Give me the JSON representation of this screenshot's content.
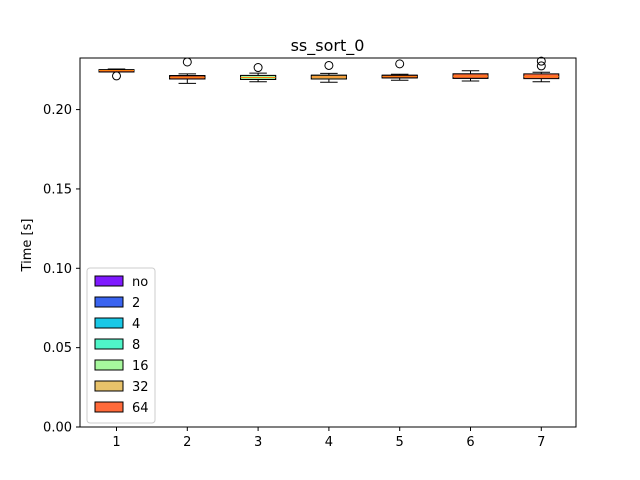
{
  "chart_data": {
    "type": "box",
    "title": "ss_sort_0",
    "xlabel": "",
    "ylabel": "Time [s]",
    "categories": [
      "1",
      "2",
      "3",
      "4",
      "5",
      "6",
      "7"
    ],
    "ylim": [
      0.0,
      0.2325
    ],
    "yticks": [
      0.0,
      0.05,
      0.1,
      0.15,
      0.2
    ],
    "ytick_labels": [
      "0.00",
      "0.05",
      "0.10",
      "0.15",
      "0.20"
    ],
    "grid": false,
    "legend_position": "lower-left",
    "series": [
      {
        "name": "no",
        "color": "#7f1aff"
      },
      {
        "name": "2",
        "color": "#3a64f0"
      },
      {
        "name": "4",
        "color": "#1ac8e6"
      },
      {
        "name": "8",
        "color": "#4ff5c8"
      },
      {
        "name": "16",
        "color": "#a7f89d"
      },
      {
        "name": "32",
        "color": "#e8c26a"
      },
      {
        "name": "64",
        "color": "#ff6a3a"
      }
    ],
    "boxes": [
      {
        "category": "1",
        "whisker_low": 0.2238,
        "q1": 0.2242,
        "median": 0.2246,
        "q3": 0.225,
        "whisker_high": 0.2256,
        "outliers": [
          0.2212
        ],
        "colors": [
          "#7f1aff",
          "#3a64f0",
          "#1ac8e6",
          "#4ff5c8",
          "#a7f89d",
          "#e8c26a",
          "#ff6a3a"
        ]
      },
      {
        "category": "2",
        "whisker_low": 0.2165,
        "q1": 0.2193,
        "median": 0.2203,
        "q3": 0.2213,
        "whisker_high": 0.2225,
        "outliers": [
          0.23
        ],
        "colors": [
          "#7f1aff",
          "#3a64f0",
          "#1ac8e6",
          "#4ff5c8",
          "#a7f89d",
          "#e8c26a",
          "#ff6a3a"
        ]
      },
      {
        "category": "3",
        "whisker_low": 0.2175,
        "q1": 0.219,
        "median": 0.2202,
        "q3": 0.2215,
        "whisker_high": 0.223,
        "outliers": [
          0.2265
        ],
        "colors": [
          "#1ac8e6",
          "#4ff5c8",
          "#a7f89d"
        ]
      },
      {
        "category": "4",
        "whisker_low": 0.2172,
        "q1": 0.2193,
        "median": 0.2205,
        "q3": 0.2216,
        "whisker_high": 0.2228,
        "outliers": [
          0.2278
        ],
        "colors": [
          "#4ff5c8",
          "#a7f89d",
          "#e8c26a"
        ]
      },
      {
        "category": "5",
        "whisker_low": 0.2185,
        "q1": 0.22,
        "median": 0.2208,
        "q3": 0.2216,
        "whisker_high": 0.2223,
        "outliers": [
          0.2288
        ],
        "colors": [
          "#a7f89d",
          "#e8c26a",
          "#ff6a3a"
        ]
      },
      {
        "category": "6",
        "whisker_low": 0.218,
        "q1": 0.2197,
        "median": 0.221,
        "q3": 0.2225,
        "whisker_high": 0.2245,
        "outliers": [],
        "colors": [
          "#e8c26a",
          "#ff6a3a"
        ]
      },
      {
        "category": "7",
        "whisker_low": 0.2175,
        "q1": 0.2195,
        "median": 0.2208,
        "q3": 0.2225,
        "whisker_high": 0.2235,
        "outliers": [
          0.2275,
          0.2305
        ],
        "colors": [
          "#ff6a3a"
        ]
      }
    ]
  }
}
